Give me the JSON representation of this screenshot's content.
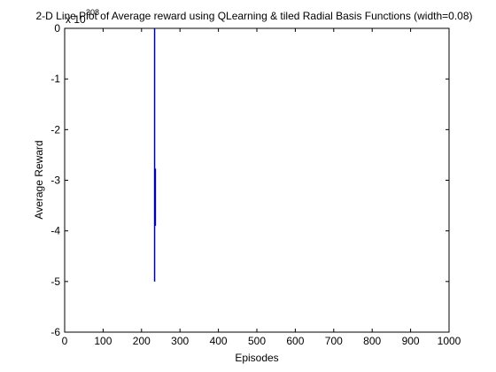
{
  "chart_data": {
    "type": "line",
    "title": "2-D Line Plot of Average reward using QLearning & tiled Radial Basis Functions (width=0.08)",
    "xlabel": "Episodes",
    "ylabel": "Average Reward",
    "y_exponent_base": "x 10",
    "y_exponent_power": "308",
    "xlim": [
      0,
      1000
    ],
    "ylim": [
      -6,
      0
    ],
    "x_ticks": [
      0,
      100,
      200,
      300,
      400,
      500,
      600,
      700,
      800,
      900,
      1000
    ],
    "y_ticks": [
      0,
      -1,
      -2,
      -3,
      -4,
      -5,
      -6
    ],
    "x_tick_labels": [
      "0",
      "100",
      "200",
      "300",
      "400",
      "500",
      "600",
      "700",
      "800",
      "900",
      "1000"
    ],
    "y_tick_labels": [
      "0",
      "-1",
      "-2",
      "-3",
      "-4",
      "-5",
      "-6"
    ],
    "grid": false,
    "legend": false,
    "series": [
      {
        "color": "#0000aa",
        "segments": [
          {
            "x": [
              234,
              234
            ],
            "y": [
              0,
              -5.0
            ]
          },
          {
            "x": [
              236,
              236
            ],
            "y": [
              -2.77,
              -3.9
            ]
          }
        ]
      }
    ]
  }
}
